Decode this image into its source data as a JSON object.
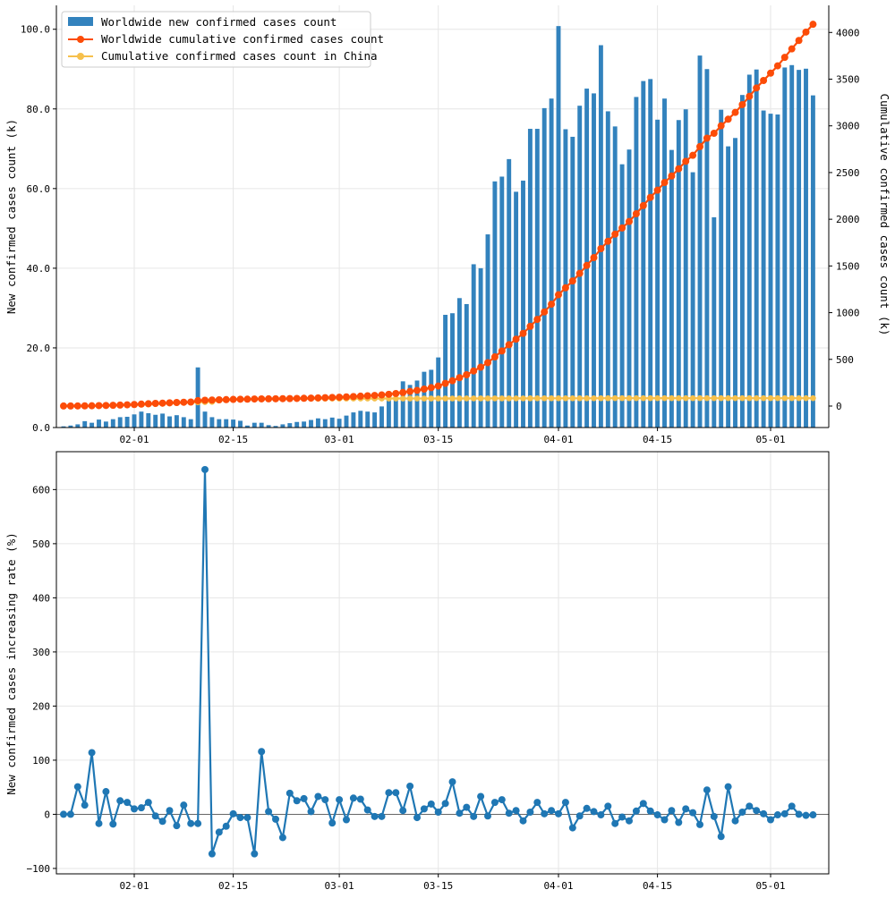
{
  "colors": {
    "bars": "#3282bd",
    "worldwide_cum": "#fc4c08",
    "china_cum": "#f6c04c",
    "rate": "#1f77b4",
    "grid": "#e6e6e6"
  },
  "chart_data": [
    {
      "type": "bar+line",
      "x_start_date": "2020-01-22",
      "x_ticks": [
        "02-01",
        "02-15",
        "03-01",
        "03-15",
        "04-01",
        "04-15",
        "05-01"
      ],
      "ylabel_left": "New confirmed cases count (k)",
      "ylabel_right": "Cumulative confirmed cases count (k)",
      "ylim_left": [
        0,
        106
      ],
      "ylim_right": [
        -230,
        4290
      ],
      "y_ticks_left": [
        "0.0",
        "20.0",
        "40.0",
        "60.0",
        "80.0",
        "100.0"
      ],
      "y_ticks_right": [
        "0",
        "500",
        "1000",
        "1500",
        "2000",
        "2500",
        "3000",
        "3500",
        "4000"
      ],
      "grid": true,
      "legend_position": "top-left",
      "series": [
        {
          "name": "Worldwide new confirmed cases count",
          "type": "bar",
          "axis": "left",
          "values": [
            0.3,
            0.5,
            0.8,
            1.6,
            1.2,
            2.0,
            1.5,
            2.1,
            2.6,
            2.7,
            3.3,
            4.0,
            3.6,
            3.2,
            3.5,
            2.8,
            3.1,
            2.6,
            2.1,
            15.1,
            4.0,
            2.6,
            2.1,
            2.1,
            2.0,
            1.7,
            0.5,
            1.2,
            1.2,
            0.6,
            0.4,
            0.8,
            1.1,
            1.4,
            1.5,
            1.9,
            2.3,
            2.1,
            2.5,
            2.2,
            3.0,
            3.8,
            4.2,
            4.0,
            3.8,
            5.3,
            7.0,
            7.4,
            11.6,
            10.7,
            11.8,
            14.0,
            14.5,
            17.6,
            28.3,
            28.7,
            32.5,
            31.0,
            41.0,
            40.0,
            48.5,
            61.8,
            63.0,
            67.4,
            59.2,
            62.0,
            75.0,
            75.0,
            80.2,
            82.6,
            100.8,
            74.9,
            73.0,
            80.8,
            85.1,
            83.9,
            96.0,
            79.4,
            75.6,
            66.1,
            69.8,
            83.0,
            87.0,
            87.5,
            77.3,
            82.6,
            69.7,
            77.2,
            79.9,
            64.1,
            93.4,
            90.0,
            52.8,
            79.8,
            70.6,
            72.7,
            83.5,
            88.6,
            89.9,
            79.6,
            78.8,
            78.6,
            90.4,
            91.0,
            89.8,
            90.1,
            83.4
          ]
        },
        {
          "name": "Worldwide cumulative confirmed cases count",
          "type": "line",
          "axis": "right",
          "values": [
            0.6,
            0.9,
            1.3,
            2.1,
            3.0,
            4.8,
            6.0,
            8.1,
            10.7,
            13.4,
            16.7,
            20.8,
            24.4,
            28.6,
            31.5,
            35.0,
            38.1,
            40.7,
            42.9,
            58.0,
            62.0,
            64.6,
            66.8,
            68.9,
            71.3,
            73.2,
            73.7,
            75.8,
            76.8,
            77.4,
            78.2,
            79.0,
            80.1,
            81.5,
            83.1,
            85.0,
            87.4,
            89.6,
            92.3,
            94.8,
            98.0,
            101.9,
            106.1,
            110.0,
            113.8,
            119.1,
            126.0,
            134.2,
            145.5,
            156.6,
            167.8,
            181.7,
            196.9,
            214.4,
            242.7,
            271.4,
            304.0,
            335.0,
            376.0,
            416.0,
            464.5,
            526.3,
            589.4,
            656.7,
            715.9,
            777.8,
            852.9,
            927.9,
            1008.0,
            1090.7,
            1191.5,
            1266.4,
            1339.4,
            1420.2,
            1505.3,
            1589.2,
            1685.3,
            1764.7,
            1840.3,
            1906.4,
            1976.1,
            2059.1,
            2146.2,
            2233.7,
            2310.9,
            2393.6,
            2463.3,
            2540.5,
            2620.4,
            2684.5,
            2777.9,
            2867.9,
            2920.7,
            3000.5,
            3071.2,
            3143.9,
            3227.3,
            3316.0,
            3405.9,
            3485.5,
            3564.3,
            3642.9,
            3733.3,
            3824.2,
            3914.1,
            4004.1,
            4087.5
          ]
        },
        {
          "name": "Cumulative confirmed cases count in China",
          "type": "line",
          "axis": "right",
          "values": [
            0.5,
            0.6,
            0.9,
            1.4,
            2.1,
            2.9,
            4.5,
            6.0,
            7.7,
            9.7,
            11.8,
            14.4,
            17.2,
            20.4,
            24.3,
            28.0,
            31.2,
            34.5,
            37.2,
            40.2,
            42.6,
            44.7,
            59.9,
            63.9,
            66.6,
            68.6,
            70.6,
            72.4,
            74.2,
            74.7,
            75.6,
            76.2,
            77.0,
            77.3,
            77.8,
            78.2,
            78.6,
            78.9,
            79.4,
            79.9,
            80.1,
            80.3,
            80.4,
            80.6,
            80.7,
            80.8,
            80.8,
            80.9,
            80.9,
            81.0,
            81.0,
            81.1,
            81.1,
            81.2,
            81.2,
            81.3,
            81.4,
            81.5,
            81.6,
            81.7,
            81.8,
            82.0,
            82.1,
            82.3,
            82.4,
            82.5,
            82.6,
            82.7,
            82.8,
            82.9,
            83.0,
            83.1,
            83.2,
            83.3,
            83.5,
            83.6,
            83.7,
            83.8,
            83.9,
            84.0,
            84.1,
            84.2,
            84.2,
            84.3,
            84.3,
            84.3,
            84.3,
            84.3,
            84.4,
            84.4,
            84.4,
            84.4,
            84.4,
            84.4,
            84.4,
            84.4,
            84.4,
            84.4,
            84.4,
            84.4,
            84.4,
            84.4,
            84.4,
            84.4,
            84.4,
            84.4,
            84.4
          ]
        }
      ]
    },
    {
      "type": "line",
      "x_start_date": "2020-01-22",
      "x_ticks": [
        "02-01",
        "02-15",
        "03-01",
        "03-15",
        "04-01",
        "04-15",
        "05-01"
      ],
      "ylabel": "New confirmed cases increasing rate (%)",
      "ylim": [
        -110,
        670
      ],
      "y_ticks": [
        "−100",
        "0",
        "100",
        "200",
        "300",
        "400",
        "500",
        "600"
      ],
      "grid": true,
      "series": [
        {
          "values": [
            0,
            0,
            51,
            17,
            114,
            -17,
            42,
            -18,
            25,
            22,
            10,
            12,
            22,
            -3,
            -13,
            7,
            -21,
            17,
            -17,
            -17,
            637,
            -73,
            -33,
            -22,
            1,
            -6,
            -6,
            -73,
            116,
            5,
            -9,
            -43,
            39,
            25,
            29,
            5,
            33,
            27,
            -16,
            27,
            -10,
            30,
            28,
            8,
            -4,
            -4,
            40,
            40,
            7,
            52,
            -6,
            10,
            19,
            4,
            20,
            60,
            2,
            13,
            -4,
            33,
            -3,
            22,
            27,
            2,
            7,
            -12,
            4,
            22,
            1,
            7,
            1,
            22,
            -25,
            -3,
            11,
            5,
            -1,
            15,
            -17,
            -5,
            -12,
            6,
            20,
            6,
            -1,
            -10,
            7,
            -15,
            10,
            3,
            -19,
            45,
            -4,
            -41,
            51,
            -12,
            4,
            15,
            7,
            1,
            -10,
            -1,
            1,
            15,
            0,
            -2,
            -1
          ]
        }
      ]
    }
  ]
}
